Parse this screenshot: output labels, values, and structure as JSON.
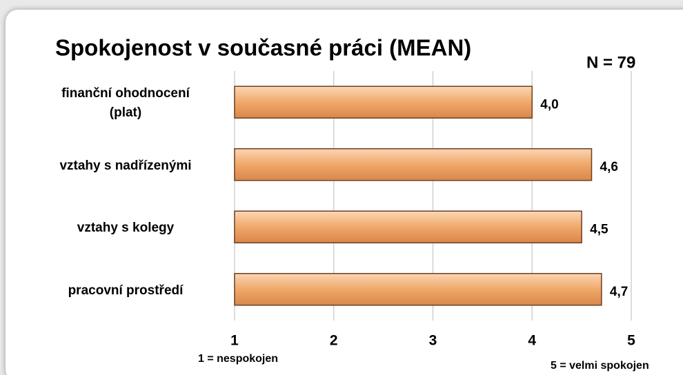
{
  "chart_data": {
    "type": "bar",
    "orientation": "horizontal",
    "title": "Spokojenost v současné práci (MEAN)",
    "annotations": [
      "N = 79",
      "1 = nespokojen",
      "5 = velmi spokojen"
    ],
    "categories": [
      "finanční ohodnocení\n(plat)",
      "vztahy s nadřízenými",
      "vztahy s kolegy",
      "pracovní prostředí"
    ],
    "values": [
      4.0,
      4.6,
      4.5,
      4.7
    ],
    "value_labels": [
      "4,0",
      "4,6",
      "4,5",
      "4,7"
    ],
    "color": "#f0a86a",
    "xlim": [
      1,
      5
    ],
    "xticks": [
      1,
      2,
      3,
      4,
      5
    ],
    "grid": true
  }
}
